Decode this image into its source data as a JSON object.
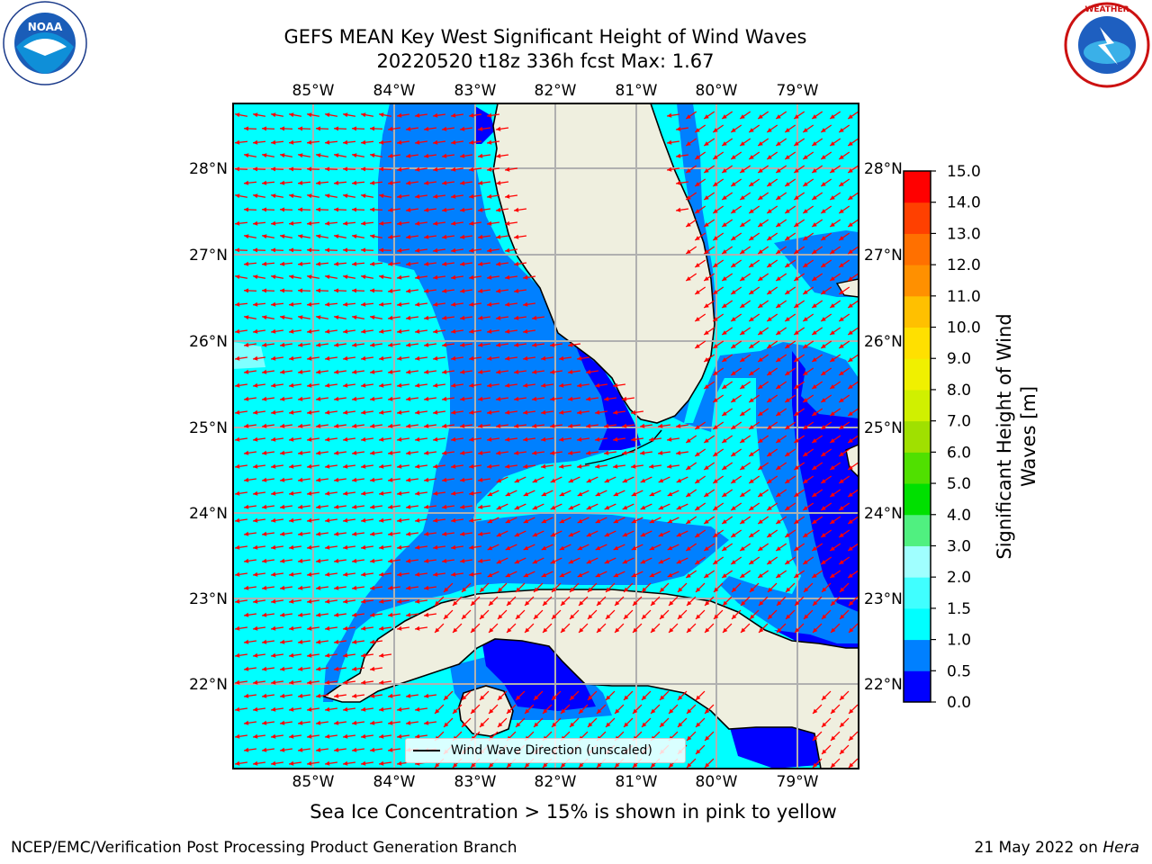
{
  "header": {
    "title_line1": "GEFS MEAN Key West Significant Height of Wind Waves",
    "title_line2": "20220520 t18z 336h fcst   Max: 1.67"
  },
  "logos": {
    "left": {
      "name": "NOAA",
      "ring_text": "NATIONAL OCEANIC AND ATMOSPHERIC ADMINISTRATION · U.S. DEPARTMENT OF COMMERCE"
    },
    "right": {
      "name": "National Weather Service",
      "ring_text": "NATIONAL WEATHER SERVICE"
    }
  },
  "map": {
    "lon_ticks": [
      "85°W",
      "84°W",
      "83°W",
      "82°W",
      "81°W",
      "80°W",
      "79°W"
    ],
    "lat_ticks": [
      "28°N",
      "27°N",
      "26°N",
      "25°N",
      "24°N",
      "23°N",
      "22°N"
    ],
    "legend_label": "Wind Wave Direction (unscaled)",
    "colors": {
      "deep": "#0000ff",
      "mid": "#0080ff",
      "light": "#00ffff",
      "land": "#efefdf",
      "arrow": "#ff0000",
      "grid": "#b0b0b0"
    }
  },
  "colorbar": {
    "title_line1": "Significant Height of Wind",
    "title_line2": "Waves [m]",
    "tick_labels": [
      "0.0",
      "0.5",
      "1.0",
      "1.5",
      "2.0",
      "3.0",
      "4.0",
      "5.0",
      "6.0",
      "7.0",
      "8.0",
      "9.0",
      "10.0",
      "11.0",
      "12.0",
      "13.0",
      "14.0",
      "15.0"
    ],
    "colors": [
      "#0000ff",
      "#0080ff",
      "#00ffff",
      "#40ffff",
      "#a0ffff",
      "#50f080",
      "#00e000",
      "#50e000",
      "#a0e000",
      "#d0f000",
      "#f0f000",
      "#ffe000",
      "#ffc000",
      "#ff9000",
      "#ff7000",
      "#ff4000",
      "#ff0000"
    ]
  },
  "footer": {
    "note": "Sea Ice Concentration > 15% is shown in pink to yellow",
    "credit": "NCEP/EMC/Verification Post Processing Product Generation Branch",
    "date_prefix": "21 May 2022 on ",
    "date_host": "Hera"
  }
}
